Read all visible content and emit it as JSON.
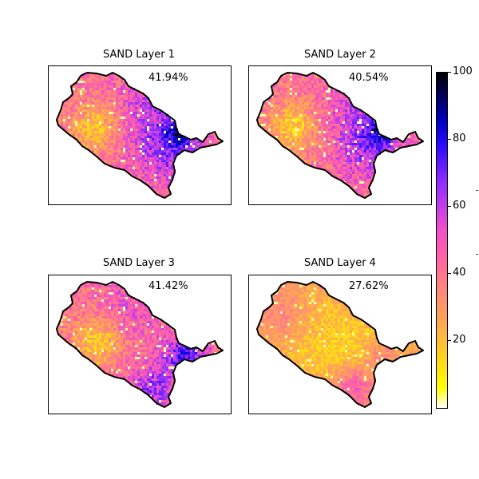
{
  "panels": [
    {
      "title": "SAND Layer 1",
      "value": "41.94%",
      "mean": 41.94
    },
    {
      "title": "SAND Layer 2",
      "value": "40.54%",
      "mean": 40.54
    },
    {
      "title": "SAND Layer 3",
      "value": "41.42%",
      "mean": 41.42
    },
    {
      "title": "SAND Layer 4",
      "value": "27.62%",
      "mean": 27.62
    }
  ],
  "colorbar": {
    "min": 0,
    "max": 100,
    "ticks": [
      "100",
      "80",
      "60",
      "40",
      "20"
    ],
    "colormap": "gnuplot2_r",
    "colors": [
      "#ffffff",
      "#ffff00",
      "#ffa850",
      "#ff66a0",
      "#c040e6",
      "#2e0aff",
      "#000000"
    ]
  },
  "colors": {
    "boundary": "#000000",
    "frame": "#000000",
    "background": "#ffffff"
  }
}
